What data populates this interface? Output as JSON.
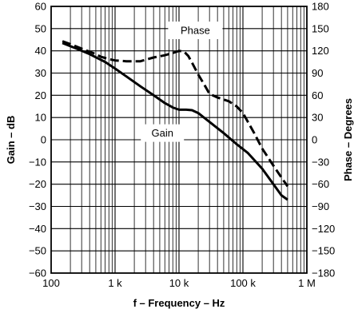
{
  "chart_data": {
    "type": "line",
    "title": "",
    "xlabel": "f – Frequency – Hz",
    "ylabel": "Gain – dB",
    "y2label": "Phase – Degrees",
    "xscale": "log",
    "xlim": [
      100,
      1000000
    ],
    "ylim": [
      -60,
      60
    ],
    "y2lim": [
      -180,
      180
    ],
    "grid": true,
    "x_ticks": [
      {
        "value": 100,
        "label": "100"
      },
      {
        "value": 1000,
        "label": "1 k"
      },
      {
        "value": 10000,
        "label": "10 k"
      },
      {
        "value": 100000,
        "label": "100 k"
      },
      {
        "value": 1000000,
        "label": "1 M"
      }
    ],
    "y_ticks": [
      "60",
      "50",
      "40",
      "30",
      "20",
      "10",
      "0",
      "−10",
      "−20",
      "−30",
      "−40",
      "−50",
      "−60"
    ],
    "y2_ticks": [
      "180",
      "150",
      "120",
      "90",
      "60",
      "30",
      "0",
      "−30",
      "−60",
      "−90",
      "−120",
      "−150",
      "−180"
    ],
    "series": [
      {
        "name": "Gain",
        "axis": "left",
        "style": "solid",
        "x": [
          150,
          250,
          400,
          700,
          1000,
          1500,
          2500,
          4000,
          6000,
          8000,
          10000,
          13000,
          16000,
          20000,
          30000,
          50000,
          80000,
          120000,
          200000,
          300000,
          400000,
          500000
        ],
        "y": [
          43.5,
          41,
          38.5,
          35,
          32,
          28.5,
          24,
          20,
          16.5,
          14.5,
          13.5,
          13.5,
          13.3,
          12,
          8,
          3,
          -2,
          -6,
          -13,
          -20,
          -25,
          -27
        ]
      },
      {
        "name": "Phase",
        "axis": "right",
        "style": "dashed",
        "x": [
          150,
          200,
          300,
          450,
          600,
          800,
          1000,
          1500,
          2500,
          4000,
          6000,
          8000,
          10000,
          12000,
          14000,
          16000,
          20000,
          25000,
          30000,
          40000,
          60000,
          80000,
          100000,
          150000,
          200000,
          300000,
          400000,
          500000
        ],
        "y": [
          133,
          129,
          123,
          117,
          112,
          109,
          107,
          106,
          106,
          111,
          114,
          117,
          120,
          119,
          113,
          104,
          88,
          74,
          62,
          57,
          52,
          45,
          36,
          9,
          -12,
          -35,
          -51,
          -63
        ]
      }
    ],
    "series_labels": [
      "Phase",
      "Gain"
    ],
    "colors": {
      "line": "#000000",
      "background": "#ffffff"
    }
  }
}
